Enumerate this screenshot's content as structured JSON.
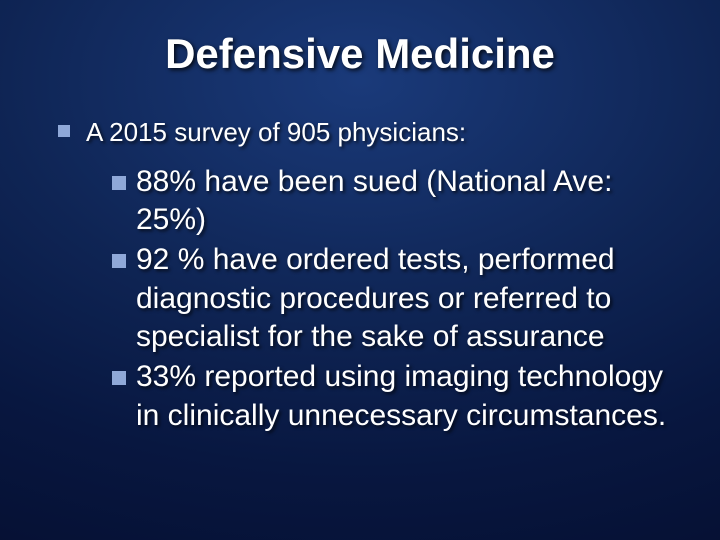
{
  "slide": {
    "title": "Defensive Medicine",
    "title_fontsize": 42,
    "title_color": "#ffffff",
    "background_gradient": [
      "#1a3a7a",
      "#0f2555",
      "#081740",
      "#030a28"
    ],
    "bullet_color": "#8fa8d8",
    "text_color": "#ffffff",
    "text_shadow": "2px 2px 3px rgba(0,0,0,0.7)",
    "level1": {
      "text": "A 2015 survey of 905 physicians:",
      "fontsize": 26
    },
    "level2": [
      {
        "text": "88% have been sued (National Ave: 25%)"
      },
      {
        "text": "92 % have ordered tests, performed diagnostic procedures or referred to specialist for the sake of assurance"
      },
      {
        "text": "33% reported using imaging technology in clinically unnecessary circumstances."
      }
    ],
    "level2_fontsize": 30
  }
}
